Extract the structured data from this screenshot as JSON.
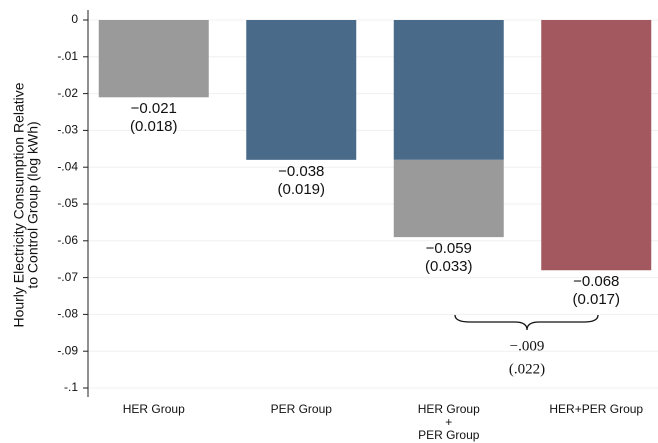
{
  "chart_data": {
    "type": "stacked_bar",
    "ylabel": [
      "Hourly Electricity Consumption Relative",
      "to Control Group (log kWh)"
    ],
    "categories": [
      [
        "HER Group"
      ],
      [
        "PER Group"
      ],
      [
        "HER Group",
        "+",
        "PER Group"
      ],
      [
        "HER+PER Group"
      ]
    ],
    "series": [
      {
        "color": "#4a6a8a",
        "values": [
          null,
          -0.038,
          -0.038,
          null
        ]
      },
      {
        "color": "#9a9a9a",
        "values": [
          -0.021,
          null,
          -0.021,
          null
        ]
      },
      {
        "color": "#a3585f",
        "values": [
          null,
          null,
          null,
          -0.068
        ]
      }
    ],
    "bar_labels": [
      [
        "−0.021",
        "(0.018)"
      ],
      [
        "−0.038",
        "(0.019)"
      ],
      [
        "−0.059",
        "(0.033)"
      ],
      [
        "−0.068",
        "(0.017)"
      ]
    ],
    "bracket_labels": [
      "−.009",
      "(.022)"
    ],
    "ylim": [
      0,
      -0.1
    ],
    "yticks": [
      0,
      {
        "value": -0.01,
        "label": "-.01"
      },
      {
        "value": -0.02,
        "label": "-.02"
      },
      {
        "value": -0.03,
        "label": "-.03"
      },
      {
        "value": -0.04,
        "label": "-.04"
      },
      {
        "value": -0.05,
        "label": "-.05"
      },
      {
        "value": -0.06,
        "label": "-.06"
      },
      {
        "value": -0.07,
        "label": "-.07"
      },
      {
        "value": -0.08,
        "label": "-.08"
      },
      {
        "value": -0.09,
        "label": "-.09"
      },
      {
        "value": -0.1,
        "label": "-.1"
      }
    ],
    "grid": true
  }
}
